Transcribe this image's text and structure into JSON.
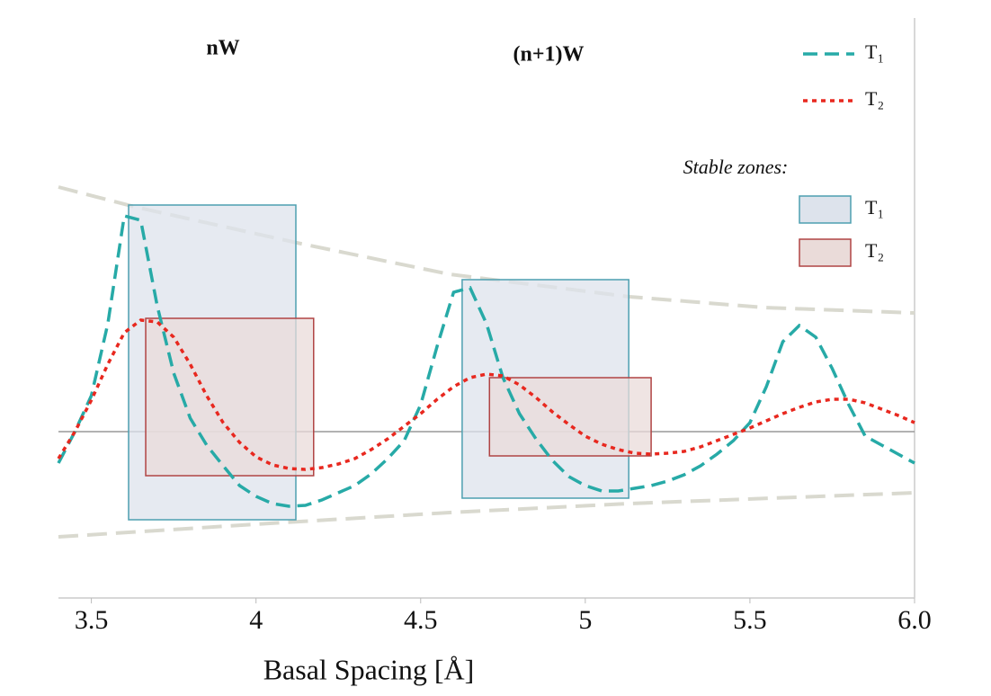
{
  "chart_data": {
    "type": "line",
    "annotations": [
      "nW",
      "(n+1)W"
    ],
    "xlabel": "Basal Spacing [Å]",
    "xlim": [
      3.4,
      6.0
    ],
    "xticks": [
      3.5,
      4.0,
      4.5,
      5.0,
      5.5,
      {
        "value": 6.0,
        "label": "6.0"
      }
    ],
    "ylim": [
      -1.85,
      4.6
    ],
    "zero_line": 0,
    "x": [
      3.4,
      3.45,
      3.5,
      3.55,
      3.6,
      3.65,
      3.7,
      3.75,
      3.8,
      3.85,
      3.9,
      3.95,
      4.0,
      4.05,
      4.1,
      4.15,
      4.2,
      4.25,
      4.3,
      4.35,
      4.4,
      4.45,
      4.5,
      4.55,
      4.6,
      4.65,
      4.7,
      4.75,
      4.8,
      4.85,
      4.9,
      4.95,
      5.0,
      5.05,
      5.1,
      5.15,
      5.2,
      5.25,
      5.3,
      5.35,
      5.4,
      5.45,
      5.5,
      5.55,
      5.6,
      5.65,
      5.7,
      5.75,
      5.8,
      5.85,
      5.9,
      5.95,
      6.0
    ],
    "series": [
      {
        "name": "T₁",
        "color": "#27aaa7",
        "dash": "dashed",
        "values": [
          -0.35,
          0.0,
          0.4,
          1.2,
          2.4,
          2.35,
          1.4,
          0.65,
          0.15,
          -0.15,
          -0.38,
          -0.6,
          -0.72,
          -0.8,
          -0.83,
          -0.82,
          -0.76,
          -0.68,
          -0.6,
          -0.47,
          -0.3,
          -0.1,
          0.3,
          0.95,
          1.55,
          1.6,
          1.2,
          0.6,
          0.2,
          -0.08,
          -0.32,
          -0.5,
          -0.6,
          -0.66,
          -0.66,
          -0.63,
          -0.6,
          -0.55,
          -0.48,
          -0.38,
          -0.25,
          -0.1,
          0.1,
          0.5,
          1.0,
          1.18,
          1.05,
          0.7,
          0.3,
          -0.05,
          -0.15,
          -0.25,
          -0.35
        ]
      },
      {
        "name": "T₂",
        "color": "#e8281f",
        "dash": "dotted",
        "values": [
          -0.3,
          0.0,
          0.35,
          0.75,
          1.1,
          1.24,
          1.22,
          1.05,
          0.75,
          0.4,
          0.1,
          -0.12,
          -0.28,
          -0.37,
          -0.41,
          -0.42,
          -0.4,
          -0.36,
          -0.3,
          -0.2,
          -0.08,
          0.06,
          0.2,
          0.36,
          0.5,
          0.6,
          0.64,
          0.62,
          0.52,
          0.38,
          0.22,
          0.08,
          -0.05,
          -0.14,
          -0.2,
          -0.24,
          -0.25,
          -0.24,
          -0.22,
          -0.17,
          -0.1,
          -0.03,
          0.04,
          0.12,
          0.2,
          0.27,
          0.33,
          0.36,
          0.36,
          0.32,
          0.25,
          0.18,
          0.1
        ]
      }
    ],
    "envelopes": {
      "color": "#d9d9cf",
      "lines": [
        {
          "x": [
            3.4,
            3.632,
            4.124,
            4.588,
            5.134,
            5.543,
            6.0
          ],
          "values": [
            2.72,
            2.5,
            2.1,
            1.75,
            1.5,
            1.38,
            1.32
          ]
        },
        {
          "x": [
            3.4,
            4.042,
            4.588,
            5.134,
            6.0
          ],
          "values": [
            -1.17,
            -1.02,
            -0.9,
            -0.8,
            -0.68
          ]
        }
      ]
    },
    "zones_title": "Stable zones:",
    "zones": [
      {
        "name": "T₁",
        "fill": "#dde3ec",
        "stroke": "#4d9fb0",
        "boxes": [
          {
            "x": [
              3.613,
              4.121
            ],
            "y": [
              -0.98,
              2.52
            ]
          },
          {
            "x": [
              4.626,
              5.132
            ],
            "y": [
              -0.74,
              1.69
            ]
          }
        ]
      },
      {
        "name": "T₂",
        "fill": "#eadbd9",
        "stroke": "#b04444",
        "boxes": [
          {
            "x": [
              3.665,
              4.175
            ],
            "y": [
              -0.49,
              1.26
            ]
          },
          {
            "x": [
              4.709,
              5.2
            ],
            "y": [
              -0.27,
              0.6
            ]
          }
        ]
      }
    ]
  }
}
